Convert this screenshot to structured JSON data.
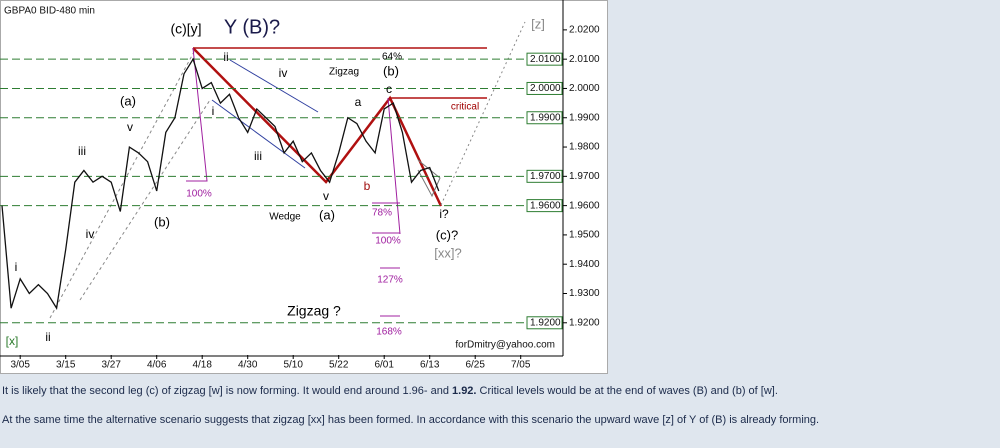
{
  "chart_data": {
    "type": "line",
    "title": "GBPA0 BID-480 min",
    "credit": "forDmitry@yahoo.com",
    "categories": [
      null,
      null,
      "3/05",
      null,
      null,
      null,
      null,
      "3/15",
      null,
      null,
      null,
      null,
      "3/27",
      null,
      null,
      null,
      null,
      "4/06",
      null,
      null,
      null,
      null,
      "4/18",
      null,
      null,
      null,
      null,
      "4/30",
      null,
      null,
      null,
      null,
      "5/10",
      null,
      null,
      null,
      null,
      "5/22",
      null,
      null,
      null,
      null,
      "6/01",
      null,
      null,
      null,
      null,
      "6/13",
      null,
      null,
      null,
      null,
      "6/25",
      null,
      null,
      null,
      null,
      "7/05",
      null,
      null
    ],
    "values": [
      1.96,
      1.925,
      1.935,
      1.93,
      1.933,
      1.93,
      1.925,
      1.945,
      1.968,
      1.972,
      1.968,
      1.97,
      1.968,
      1.958,
      1.98,
      1.978,
      1.975,
      1.965,
      1.985,
      1.99,
      2.005,
      2.01,
      2.0,
      2.002,
      1.995,
      1.998,
      1.99,
      1.985,
      1.993,
      1.99,
      1.987,
      1.978,
      1.982,
      1.975,
      1.978,
      1.972,
      1.968,
      1.978,
      1.99,
      1.988,
      1.982,
      1.978,
      1.993,
      1.995,
      1.985,
      1.968,
      1.972,
      1.973,
      1.965,
      null,
      null,
      null,
      null,
      null,
      null,
      null,
      null,
      null,
      null,
      null
    ],
    "color": "#111111",
    "ylim": [
      1.909,
      2.0302
    ],
    "yticks": [
      {
        "value": 2.02,
        "label": "2.0200"
      },
      {
        "value": 2.01,
        "label": "2.0100"
      },
      {
        "value": 2.0,
        "label": "2.0000"
      },
      {
        "value": 1.99,
        "label": "1.9900"
      },
      {
        "value": 1.98,
        "label": "1.9800"
      },
      {
        "value": 1.97,
        "label": "1.9700"
      },
      {
        "value": 1.96,
        "label": "1.9600"
      },
      {
        "value": 1.95,
        "label": "1.9500"
      },
      {
        "value": 1.94,
        "label": "1.9400"
      },
      {
        "value": 1.93,
        "label": "1.9300"
      },
      {
        "value": 1.92,
        "label": "1.9200"
      }
    ],
    "levels": [
      {
        "value": 2.01,
        "label": "2.0100"
      },
      {
        "value": 2.0,
        "label": "2.0000"
      },
      {
        "value": 1.99,
        "label": "1.9900"
      },
      {
        "value": 1.97,
        "label": "1.9700"
      },
      {
        "value": 1.96,
        "label": "1.9600"
      },
      {
        "value": 1.92,
        "label": "1.9200"
      }
    ],
    "level_color": "#2e7d32",
    "annotations": [
      "(c)[y]",
      "Y (B)?",
      "(a)",
      "v",
      "iii",
      "iv",
      "i",
      "ii",
      "[x]",
      "(b)",
      "ii",
      "iv",
      "i",
      "iii",
      "Zigzag",
      "64%",
      "(b)",
      "c",
      "a",
      "b",
      "critical",
      "100%",
      "78%",
      "100%",
      "127%",
      "168%",
      "v",
      "(a)",
      "Wedge",
      "i?",
      "(c)?",
      "[xx]?",
      "Zigzag ?",
      "[z]"
    ]
  },
  "text": {
    "paragraph_1": [
      "It is likely that the second leg (c) of zigzag [w] is now forming. It would end around 1.96- and ",
      "1.92.",
      " Critical levels would be at the end of waves (B) and (b) of [w]."
    ],
    "paragraph_2": "At the same time the alternative scenario suggests that zigzag [xx] has been formed. In accordance with this scenario the upward wave [z] of Y of (B) is already forming."
  }
}
